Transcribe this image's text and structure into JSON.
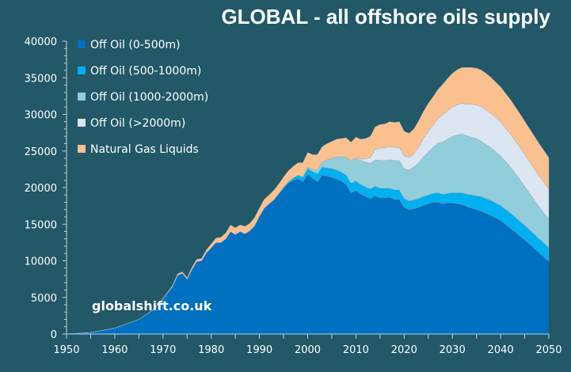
{
  "title": "GLOBAL - all offshore oils supply",
  "watermark": "globalshift.co.uk",
  "chart_data": {
    "type": "area",
    "stacked": true,
    "title": "GLOBAL - all offshore oils supply",
    "xlabel": "",
    "ylabel": "",
    "xlim": [
      1950,
      2050
    ],
    "ylim": [
      0,
      40000
    ],
    "x_ticks": [
      "1950",
      "1960",
      "1970",
      "1980",
      "1990",
      "2000",
      "2010",
      "2020",
      "2030",
      "2040",
      "2050"
    ],
    "y_ticks": [
      "0",
      "5000",
      "10000",
      "15000",
      "20000",
      "25000",
      "30000",
      "35000",
      "40000"
    ],
    "grid": false,
    "legend_position": "top-left",
    "x": [
      1950,
      1955,
      1960,
      1965,
      1968,
      1970,
      1972,
      1973,
      1974,
      1975,
      1976,
      1977,
      1978,
      1979,
      1980,
      1981,
      1982,
      1983,
      1984,
      1985,
      1986,
      1987,
      1988,
      1989,
      1990,
      1991,
      1992,
      1993,
      1994,
      1995,
      1996,
      1997,
      1998,
      1999,
      2000,
      2001,
      2002,
      2003,
      2004,
      2005,
      2006,
      2007,
      2008,
      2009,
      2010,
      2011,
      2012,
      2013,
      2014,
      2015,
      2016,
      2017,
      2018,
      2019,
      2020,
      2021,
      2022,
      2023,
      2024,
      2025,
      2026,
      2027,
      2028,
      2029,
      2030,
      2031,
      2032,
      2033,
      2034,
      2035,
      2036,
      2037,
      2038,
      2040,
      2042,
      2044,
      2046,
      2048,
      2050
    ],
    "series": [
      {
        "name": "Off Oil (0-500m)",
        "color": "#0070C0",
        "values": [
          0,
          200,
          800,
          2000,
          3300,
          4800,
          6500,
          8000,
          8300,
          7500,
          8800,
          9900,
          10000,
          11100,
          11800,
          12500,
          12500,
          13000,
          14000,
          13600,
          14000,
          13700,
          14100,
          14800,
          16100,
          17200,
          17800,
          18300,
          19100,
          19900,
          20600,
          21000,
          21200,
          20800,
          21800,
          21300,
          20800,
          21700,
          21600,
          21400,
          21200,
          20900,
          20400,
          19300,
          19600,
          19100,
          18800,
          18500,
          18900,
          18600,
          18600,
          18700,
          18400,
          18400,
          17300,
          17000,
          17100,
          17300,
          17600,
          17800,
          18000,
          18000,
          17800,
          17900,
          17900,
          17800,
          17700,
          17400,
          17200,
          17000,
          16800,
          16500,
          16200,
          15500,
          14500,
          13400,
          12300,
          11100,
          9950
        ]
      },
      {
        "name": "Off Oil (500-1000m)",
        "color": "#00B0F0",
        "values": [
          0,
          0,
          0,
          0,
          0,
          0,
          0,
          0,
          0,
          0,
          0,
          0,
          0,
          0,
          0,
          0,
          0,
          0,
          0,
          0,
          0,
          0,
          0,
          0,
          0,
          0,
          0,
          50,
          100,
          150,
          200,
          300,
          500,
          600,
          800,
          900,
          1100,
          1100,
          1100,
          1200,
          1200,
          1200,
          1300,
          1300,
          1300,
          1300,
          1300,
          1300,
          1300,
          1300,
          1300,
          1200,
          1300,
          1300,
          1200,
          1200,
          1200,
          1200,
          1200,
          1200,
          1200,
          1300,
          1300,
          1300,
          1400,
          1500,
          1600,
          1700,
          1800,
          1900,
          1950,
          2000,
          2050,
          2050,
          2050,
          2000,
          1950,
          1900,
          1850
        ]
      },
      {
        "name": "Off Oil (1000-2000m)",
        "color": "#92CDDC",
        "values": [
          0,
          0,
          0,
          0,
          0,
          0,
          0,
          0,
          0,
          0,
          0,
          0,
          0,
          0,
          0,
          0,
          0,
          0,
          0,
          0,
          0,
          0,
          0,
          0,
          0,
          0,
          0,
          0,
          0,
          0,
          0,
          0,
          0,
          100,
          200,
          300,
          500,
          700,
          1100,
          1400,
          1800,
          2100,
          2500,
          3000,
          3100,
          3300,
          3400,
          3500,
          3600,
          3800,
          3800,
          3900,
          4000,
          4000,
          4100,
          4200,
          4500,
          4900,
          5400,
          5900,
          6300,
          6800,
          7100,
          7400,
          7700,
          7900,
          8000,
          8000,
          7900,
          7800,
          7600,
          7400,
          7200,
          6800,
          6300,
          5700,
          5000,
          4400,
          3900
        ]
      },
      {
        "name": "Off Oil (>2000m)",
        "color": "#DCE6F2",
        "values": [
          0,
          0,
          0,
          0,
          0,
          0,
          0,
          0,
          0,
          0,
          0,
          0,
          0,
          0,
          0,
          0,
          0,
          0,
          0,
          0,
          0,
          0,
          0,
          0,
          0,
          0,
          0,
          0,
          0,
          0,
          0,
          0,
          0,
          0,
          0,
          0,
          0,
          0,
          0,
          0,
          0,
          0,
          0,
          0,
          100,
          200,
          400,
          800,
          1400,
          1700,
          1700,
          1800,
          1800,
          1800,
          1700,
          1700,
          1800,
          2100,
          2500,
          2800,
          3000,
          3300,
          3700,
          3900,
          4000,
          4100,
          4200,
          4300,
          4500,
          4600,
          4700,
          4700,
          4700,
          4600,
          4500,
          4400,
          4300,
          4200,
          4100
        ]
      },
      {
        "name": "Natural Gas Liquids",
        "color": "#FAC090",
        "values": [
          0,
          0,
          0,
          0,
          50,
          100,
          150,
          200,
          200,
          200,
          300,
          300,
          300,
          400,
          500,
          600,
          700,
          800,
          900,
          900,
          900,
          1000,
          1000,
          1100,
          1100,
          1200,
          1200,
          1300,
          1300,
          1400,
          1500,
          1600,
          1700,
          1900,
          2000,
          2000,
          2100,
          2100,
          2200,
          2300,
          2400,
          2500,
          2600,
          2600,
          2800,
          2700,
          2800,
          2900,
          3100,
          3200,
          3300,
          3400,
          3400,
          3500,
          3400,
          3300,
          3400,
          3600,
          3700,
          3800,
          3900,
          4000,
          4200,
          4400,
          4600,
          4800,
          4900,
          5000,
          5000,
          5000,
          5000,
          5000,
          4900,
          4800,
          4700,
          4600,
          4500,
          4400,
          4300
        ]
      }
    ]
  }
}
